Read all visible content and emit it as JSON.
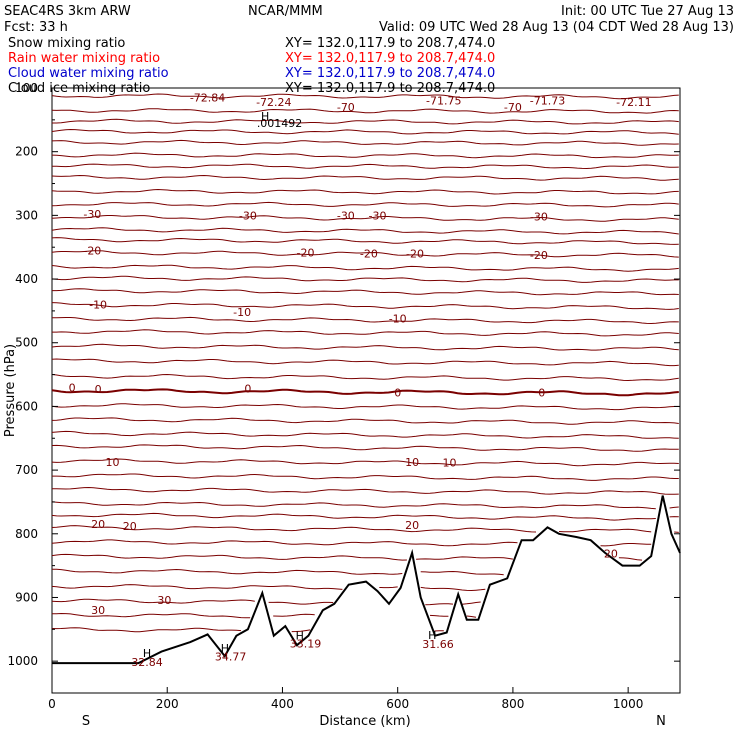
{
  "header": {
    "model": "SEAC4RS  3km ARW",
    "center": "NCAR/MMM",
    "init": "Init: 00 UTC Tue 27 Aug 13",
    "fcst": "Fcst:    33 h",
    "valid": "Valid: 09 UTC Wed 28 Aug 13 (04 CDT Wed 28 Aug 13)"
  },
  "legend": [
    {
      "name": "Snow mixing ratio",
      "xy": "XY=  132.0,117.9 to 208.7,474.0",
      "color": "#000000"
    },
    {
      "name": "Rain water mixing ratio",
      "xy": "XY=  132.0,117.9 to 208.7,474.0",
      "color": "#ff0000"
    },
    {
      "name": "Cloud water mixing ratio",
      "xy": "XY=  132.0,117.9 to 208.7,474.0",
      "color": "#0000cc"
    },
    {
      "name": "Cloud ice mixing ratio",
      "xy": "XY=  132.0,117.9 to 208.7,474.0",
      "color": "#000000"
    }
  ],
  "colors": {
    "contour": "#7a0000",
    "terrain": "#000000",
    "axis": "#000000"
  },
  "chart_data": {
    "type": "line",
    "xlabel": "Distance (km)",
    "ylabel": "Pressure (hPa)",
    "xlim": [
      0,
      1090
    ],
    "ylim": [
      1050,
      100
    ],
    "x_ticks": [
      "0",
      "200",
      "400",
      "600",
      "800",
      "1000"
    ],
    "y_ticks": [
      "100",
      "200",
      "300",
      "400",
      "500",
      "600",
      "700",
      "800",
      "900",
      "1000"
    ],
    "x_end_labels": [
      "S",
      "N"
    ],
    "terrain": {
      "x": [
        0,
        150,
        190,
        240,
        270,
        300,
        320,
        340,
        365,
        385,
        405,
        425,
        445,
        470,
        490,
        515,
        545,
        565,
        585,
        605,
        625,
        640,
        665,
        685,
        705,
        720,
        740,
        760,
        790,
        815,
        835,
        860,
        880,
        910,
        935,
        960,
        990,
        1020,
        1040,
        1060,
        1075,
        1090
      ],
      "p": [
        1003,
        1003,
        985,
        970,
        958,
        992,
        960,
        950,
        893,
        960,
        945,
        975,
        960,
        920,
        910,
        880,
        875,
        890,
        910,
        885,
        830,
        900,
        960,
        955,
        895,
        935,
        935,
        880,
        870,
        810,
        810,
        790,
        800,
        805,
        810,
        830,
        850,
        850,
        835,
        740,
        800,
        830
      ]
    },
    "contour_levels": [
      {
        "level": "-70",
        "p": 135
      },
      {
        "level": "-30",
        "p": 302
      },
      {
        "level": "-20",
        "p": 358
      },
      {
        "level": "-10",
        "p": 440
      },
      {
        "level": "0",
        "p": 575
      },
      {
        "level": "10",
        "p": 685
      },
      {
        "level": "20",
        "p": 790
      },
      {
        "level": "30",
        "p": 927
      }
    ],
    "annotations": [
      {
        "text": "-72.84",
        "x": 270,
        "p": 115
      },
      {
        "text": "-72.24",
        "x": 385,
        "p": 122
      },
      {
        "text": "-71.75",
        "x": 680,
        "p": 120
      },
      {
        "text": "-71.73",
        "x": 860,
        "p": 120
      },
      {
        "text": "-72.11",
        "x": 1010,
        "p": 122
      },
      {
        "text": "H",
        "x": 370,
        "p": 144
      },
      {
        "text": ".001492",
        "x": 395,
        "p": 155
      },
      {
        "text": "H",
        "x": 165,
        "p": 987
      },
      {
        "text": "32.84",
        "x": 165,
        "p": 1001
      },
      {
        "text": "H",
        "x": 300,
        "p": 979
      },
      {
        "text": "34.77",
        "x": 310,
        "p": 993
      },
      {
        "text": "H",
        "x": 430,
        "p": 960
      },
      {
        "text": "33.19",
        "x": 440,
        "p": 972
      },
      {
        "text": "H",
        "x": 660,
        "p": 959
      },
      {
        "text": "31.66",
        "x": 670,
        "p": 973
      }
    ],
    "contour_labels": [
      {
        "text": "-70",
        "x": 510,
        "p": 130
      },
      {
        "text": "-70",
        "x": 800,
        "p": 130
      },
      {
        "text": "-30",
        "x": 70,
        "p": 298
      },
      {
        "text": "-30",
        "x": 340,
        "p": 300
      },
      {
        "text": "-30",
        "x": 510,
        "p": 300
      },
      {
        "text": "-30",
        "x": 565,
        "p": 300
      },
      {
        "text": "-30",
        "x": 845,
        "p": 302
      },
      {
        "text": "-20",
        "x": 70,
        "p": 355
      },
      {
        "text": "-20",
        "x": 440,
        "p": 358
      },
      {
        "text": "-20",
        "x": 550,
        "p": 360
      },
      {
        "text": "-20",
        "x": 630,
        "p": 360
      },
      {
        "text": "-20",
        "x": 845,
        "p": 362
      },
      {
        "text": "-10",
        "x": 80,
        "p": 440
      },
      {
        "text": "-10",
        "x": 330,
        "p": 452
      },
      {
        "text": "-10",
        "x": 600,
        "p": 462
      },
      {
        "text": "0",
        "x": 35,
        "p": 570
      },
      {
        "text": "0",
        "x": 80,
        "p": 573
      },
      {
        "text": "0",
        "x": 340,
        "p": 572
      },
      {
        "text": "0",
        "x": 600,
        "p": 578
      },
      {
        "text": "0",
        "x": 850,
        "p": 578
      },
      {
        "text": "10",
        "x": 105,
        "p": 687
      },
      {
        "text": "10",
        "x": 625,
        "p": 687
      },
      {
        "text": "10",
        "x": 690,
        "p": 688
      },
      {
        "text": "20",
        "x": 80,
        "p": 785
      },
      {
        "text": "20",
        "x": 135,
        "p": 788
      },
      {
        "text": "20",
        "x": 625,
        "p": 786
      },
      {
        "text": "20",
        "x": 970,
        "p": 831
      },
      {
        "text": "30",
        "x": 80,
        "p": 920
      },
      {
        "text": "30",
        "x": 195,
        "p": 904
      }
    ]
  }
}
